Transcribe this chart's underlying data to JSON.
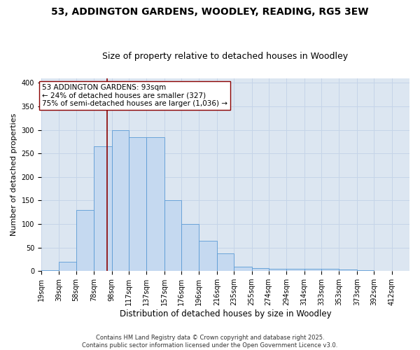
{
  "title_line1": "53, ADDINGTON GARDENS, WOODLEY, READING, RG5 3EW",
  "title_line2": "Size of property relative to detached houses in Woodley",
  "xlabel": "Distribution of detached houses by size in Woodley",
  "ylabel": "Number of detached properties",
  "bar_left_edges": [
    19,
    39,
    58,
    78,
    98,
    117,
    137,
    157,
    176,
    196,
    216,
    235,
    255,
    274,
    294,
    314,
    333,
    353,
    373,
    392
  ],
  "bar_widths": [
    20,
    19,
    20,
    20,
    19,
    20,
    20,
    19,
    20,
    20,
    19,
    20,
    19,
    20,
    20,
    19,
    20,
    20,
    19,
    20
  ],
  "bar_heights": [
    2,
    20,
    130,
    265,
    300,
    285,
    285,
    150,
    100,
    65,
    38,
    10,
    7,
    5,
    5,
    5,
    5,
    4,
    2,
    0
  ],
  "tick_labels": [
    "19sqm",
    "39sqm",
    "58sqm",
    "78sqm",
    "98sqm",
    "117sqm",
    "137sqm",
    "157sqm",
    "176sqm",
    "196sqm",
    "216sqm",
    "235sqm",
    "255sqm",
    "274sqm",
    "294sqm",
    "314sqm",
    "333sqm",
    "353sqm",
    "373sqm",
    "392sqm",
    "412sqm"
  ],
  "bar_color": "#c5d9f0",
  "bar_edge_color": "#5b9bd5",
  "vline_x": 93,
  "vline_color": "#8b0000",
  "annotation_text": "53 ADDINGTON GARDENS: 93sqm\n← 24% of detached houses are smaller (327)\n75% of semi-detached houses are larger (1,036) →",
  "annotation_box_color": "#ffffff",
  "annotation_box_edge": "#8b0000",
  "ylim": [
    0,
    410
  ],
  "yticks": [
    0,
    50,
    100,
    150,
    200,
    250,
    300,
    350,
    400
  ],
  "grid_color": "#c5d4e8",
  "bg_color": "#dce6f1",
  "footer_text": "Contains HM Land Registry data © Crown copyright and database right 2025.\nContains public sector information licensed under the Open Government Licence v3.0.",
  "title_fontsize": 10,
  "subtitle_fontsize": 9,
  "ylabel_fontsize": 8,
  "xlabel_fontsize": 8.5,
  "tick_fontsize": 7,
  "annotation_fontsize": 7.5,
  "footer_fontsize": 6
}
